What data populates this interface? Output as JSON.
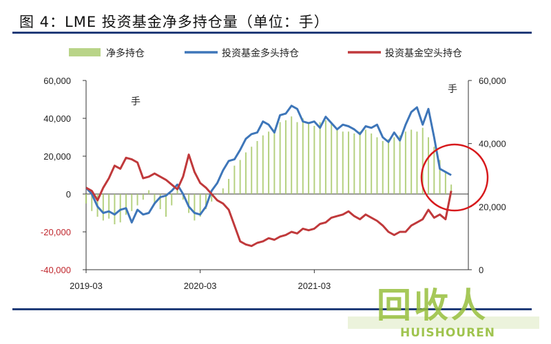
{
  "title": "图 4：LME 投资基金净多持仓量（单位：手）",
  "legend": [
    {
      "label": "净多持仓",
      "color": "#a8c96a"
    },
    {
      "label": "投资基金多头持仓",
      "color": "#3e76b9"
    },
    {
      "label": "投资基金空头持仓",
      "color": "#c0393b"
    }
  ],
  "watermark": {
    "main": "回收人",
    "sub": "HUISHOUREN"
  },
  "chart_data": {
    "type": "line",
    "left_unit": "手",
    "right_unit": "手",
    "x_tick_labels": [
      "2019-03",
      "2020-03",
      "2021-03"
    ],
    "left_axis": {
      "min": -40000,
      "max": 60000,
      "ticks": [
        -40000,
        -20000,
        0,
        20000,
        40000,
        60000
      ],
      "tick_labels": [
        "-40,000",
        "-20,000",
        "0",
        "20,000",
        "40,000",
        "60,000"
      ]
    },
    "right_axis": {
      "min": 0,
      "max": 60000,
      "ticks": [
        0,
        20000,
        40000,
        60000
      ],
      "tick_labels": [
        "0",
        "20,000",
        "40,000",
        "60,000"
      ]
    },
    "t_range": [
      2019.0,
      2022.35
    ],
    "series": [
      {
        "name": "净多持仓",
        "kind": "bar",
        "axis": "left",
        "color": "#a8c96a",
        "t": [
          2019.0,
          2019.05,
          2019.1,
          2019.15,
          2019.2,
          2019.25,
          2019.3,
          2019.35,
          2019.4,
          2019.45,
          2019.5,
          2019.55,
          2019.6,
          2019.65,
          2019.7,
          2019.75,
          2019.8,
          2019.85,
          2019.9,
          2019.95,
          2020.0,
          2020.05,
          2020.1,
          2020.15,
          2020.2,
          2020.25,
          2020.3,
          2020.35,
          2020.4,
          2020.45,
          2020.5,
          2020.55,
          2020.6,
          2020.65,
          2020.7,
          2020.75,
          2020.8,
          2020.85,
          2020.9,
          2020.95,
          2021.0,
          2021.05,
          2021.1,
          2021.15,
          2021.2,
          2021.25,
          2021.3,
          2021.35,
          2021.4,
          2021.45,
          2021.5,
          2021.55,
          2021.6,
          2021.65,
          2021.7,
          2021.75,
          2021.8,
          2021.85,
          2021.9,
          2021.95,
          2022.0,
          2022.05,
          2022.1,
          2022.15,
          2022.2
        ],
        "values": [
          -5000,
          -9000,
          -12000,
          -14000,
          -13000,
          -16000,
          -15000,
          -11000,
          -9000,
          -6000,
          -3000,
          2000,
          -5000,
          -8000,
          -12000,
          -6000,
          2000,
          -3000,
          -10000,
          -14000,
          -12000,
          -8000,
          -4000,
          0,
          3000,
          8000,
          15000,
          18000,
          22000,
          25000,
          28000,
          31000,
          33000,
          34000,
          38000,
          39000,
          41000,
          38000,
          40000,
          37000,
          36000,
          38000,
          39000,
          37000,
          35000,
          33000,
          33000,
          32000,
          33000,
          34000,
          32000,
          30000,
          28000,
          29000,
          30000,
          31000,
          33000,
          34000,
          33000,
          35000,
          30000,
          25000,
          18000,
          12000,
          5000
        ]
      },
      {
        "name": "投资基金多头持仓",
        "kind": "line",
        "axis": "right",
        "color": "#3e76b9",
        "t": [
          2019.0,
          2019.05,
          2019.1,
          2019.15,
          2019.2,
          2019.25,
          2019.3,
          2019.35,
          2019.4,
          2019.45,
          2019.5,
          2019.55,
          2019.6,
          2019.65,
          2019.7,
          2019.75,
          2019.8,
          2019.85,
          2019.9,
          2019.95,
          2020.0,
          2020.05,
          2020.1,
          2020.15,
          2020.2,
          2020.25,
          2020.3,
          2020.35,
          2020.4,
          2020.45,
          2020.5,
          2020.55,
          2020.6,
          2020.65,
          2020.7,
          2020.75,
          2020.8,
          2020.85,
          2020.9,
          2020.95,
          2021.0,
          2021.05,
          2021.1,
          2021.15,
          2021.2,
          2021.25,
          2021.3,
          2021.35,
          2021.4,
          2021.45,
          2021.5,
          2021.55,
          2021.6,
          2021.65,
          2021.7,
          2021.75,
          2021.8,
          2021.85,
          2021.9,
          2021.95,
          2022.0,
          2022.05,
          2022.1,
          2022.15,
          2022.2
        ],
        "values": [
          26000,
          24000,
          20000,
          18000,
          18500,
          17500,
          19000,
          19500,
          15000,
          19000,
          17500,
          18000,
          21000,
          23000,
          23500,
          25000,
          27000,
          24000,
          20000,
          18000,
          17500,
          20000,
          25000,
          27500,
          31500,
          34500,
          35000,
          38000,
          41500,
          43000,
          43500,
          47000,
          46000,
          43500,
          49000,
          49500,
          52000,
          51000,
          47000,
          46500,
          47000,
          45000,
          48500,
          46500,
          44500,
          46000,
          45500,
          44500,
          43000,
          45500,
          45000,
          46000,
          42000,
          40500,
          43500,
          41000,
          46000,
          50000,
          51500,
          46000,
          51000,
          42000,
          32000,
          31000,
          30000
        ]
      },
      {
        "name": "投资基金空头持仓",
        "kind": "line",
        "axis": "right",
        "color": "#c0393b",
        "t": [
          2019.0,
          2019.05,
          2019.1,
          2019.15,
          2019.2,
          2019.25,
          2019.3,
          2019.35,
          2019.4,
          2019.45,
          2019.5,
          2019.55,
          2019.6,
          2019.65,
          2019.7,
          2019.75,
          2019.8,
          2019.85,
          2019.9,
          2019.95,
          2020.0,
          2020.05,
          2020.1,
          2020.15,
          2020.2,
          2020.25,
          2020.3,
          2020.35,
          2020.4,
          2020.45,
          2020.5,
          2020.55,
          2020.6,
          2020.65,
          2020.7,
          2020.75,
          2020.8,
          2020.85,
          2020.9,
          2020.95,
          2021.0,
          2021.05,
          2021.1,
          2021.15,
          2021.2,
          2021.25,
          2021.3,
          2021.35,
          2021.4,
          2021.45,
          2021.5,
          2021.55,
          2021.6,
          2021.65,
          2021.7,
          2021.75,
          2021.8,
          2021.85,
          2021.9,
          2021.95,
          2022.0,
          2022.05,
          2022.1,
          2022.15,
          2022.2
        ],
        "values": [
          26000,
          25000,
          22000,
          26000,
          29000,
          33000,
          32000,
          35500,
          35000,
          34000,
          29000,
          29500,
          30500,
          29500,
          28500,
          27000,
          25500,
          29500,
          36500,
          31000,
          27500,
          26000,
          24000,
          22000,
          21000,
          19000,
          14000,
          9000,
          8000,
          7500,
          8500,
          9000,
          10000,
          9500,
          10500,
          11000,
          12000,
          11500,
          13000,
          12500,
          13000,
          14500,
          15000,
          16500,
          17000,
          17500,
          18500,
          17000,
          16000,
          17500,
          16500,
          15500,
          14000,
          12000,
          11000,
          12000,
          12000,
          14000,
          15000,
          16000,
          19000,
          16500,
          17500,
          16000,
          25000
        ]
      }
    ]
  }
}
